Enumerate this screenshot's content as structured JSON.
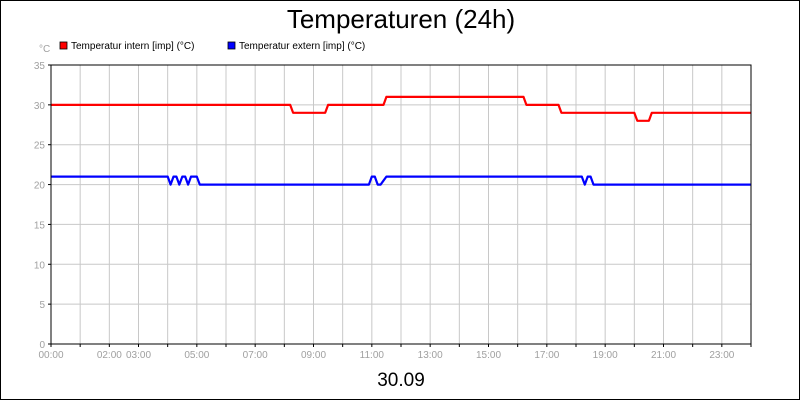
{
  "chart_data": {
    "type": "line",
    "title": "Temperaturen (24h)",
    "xlabel": "30.09",
    "ylabel": "°C",
    "ylim": [
      0,
      35
    ],
    "yticks": [
      0,
      5,
      10,
      15,
      20,
      25,
      30,
      35
    ],
    "xlim": [
      0,
      24
    ],
    "xticks": [
      {
        "x": 0,
        "label": "00:00"
      },
      {
        "x": 2,
        "label": "02:00"
      },
      {
        "x": 3,
        "label": "03:00"
      },
      {
        "x": 5,
        "label": "05:00"
      },
      {
        "x": 7,
        "label": "07:00"
      },
      {
        "x": 9,
        "label": "09:00"
      },
      {
        "x": 11,
        "label": "11:00"
      },
      {
        "x": 13,
        "label": "13:00"
      },
      {
        "x": 15,
        "label": "15:00"
      },
      {
        "x": 17,
        "label": "17:00"
      },
      {
        "x": 19,
        "label": "19:00"
      },
      {
        "x": 21,
        "label": "21:00"
      },
      {
        "x": 23,
        "label": "23:00"
      }
    ],
    "grid": true,
    "legend_position": "top-left",
    "series": [
      {
        "name": "Temperatur intern [imp] (°C)",
        "color": "#ff0000",
        "points": [
          [
            0,
            30
          ],
          [
            8.2,
            30
          ],
          [
            8.3,
            29
          ],
          [
            9.4,
            29
          ],
          [
            9.5,
            30
          ],
          [
            11.4,
            30
          ],
          [
            11.5,
            31
          ],
          [
            16.2,
            31
          ],
          [
            16.3,
            30
          ],
          [
            17.4,
            30
          ],
          [
            17.5,
            29
          ],
          [
            20.0,
            29
          ],
          [
            20.1,
            28
          ],
          [
            20.5,
            28
          ],
          [
            20.6,
            29
          ],
          [
            24,
            29
          ]
        ]
      },
      {
        "name": "Temperatur extern [imp] (°C)",
        "color": "#0000ff",
        "points": [
          [
            0,
            21
          ],
          [
            4.0,
            21
          ],
          [
            4.1,
            20
          ],
          [
            4.2,
            21
          ],
          [
            4.3,
            21
          ],
          [
            4.4,
            20
          ],
          [
            4.5,
            21
          ],
          [
            4.6,
            21
          ],
          [
            4.7,
            20
          ],
          [
            4.8,
            21
          ],
          [
            5.0,
            21
          ],
          [
            5.1,
            20
          ],
          [
            5.2,
            20
          ],
          [
            10.9,
            20
          ],
          [
            11.0,
            21
          ],
          [
            11.1,
            21
          ],
          [
            11.2,
            20
          ],
          [
            11.3,
            20
          ],
          [
            11.5,
            21
          ],
          [
            18.2,
            21
          ],
          [
            18.3,
            20
          ],
          [
            18.4,
            21
          ],
          [
            18.5,
            21
          ],
          [
            18.6,
            20
          ],
          [
            24,
            20
          ]
        ]
      }
    ]
  }
}
